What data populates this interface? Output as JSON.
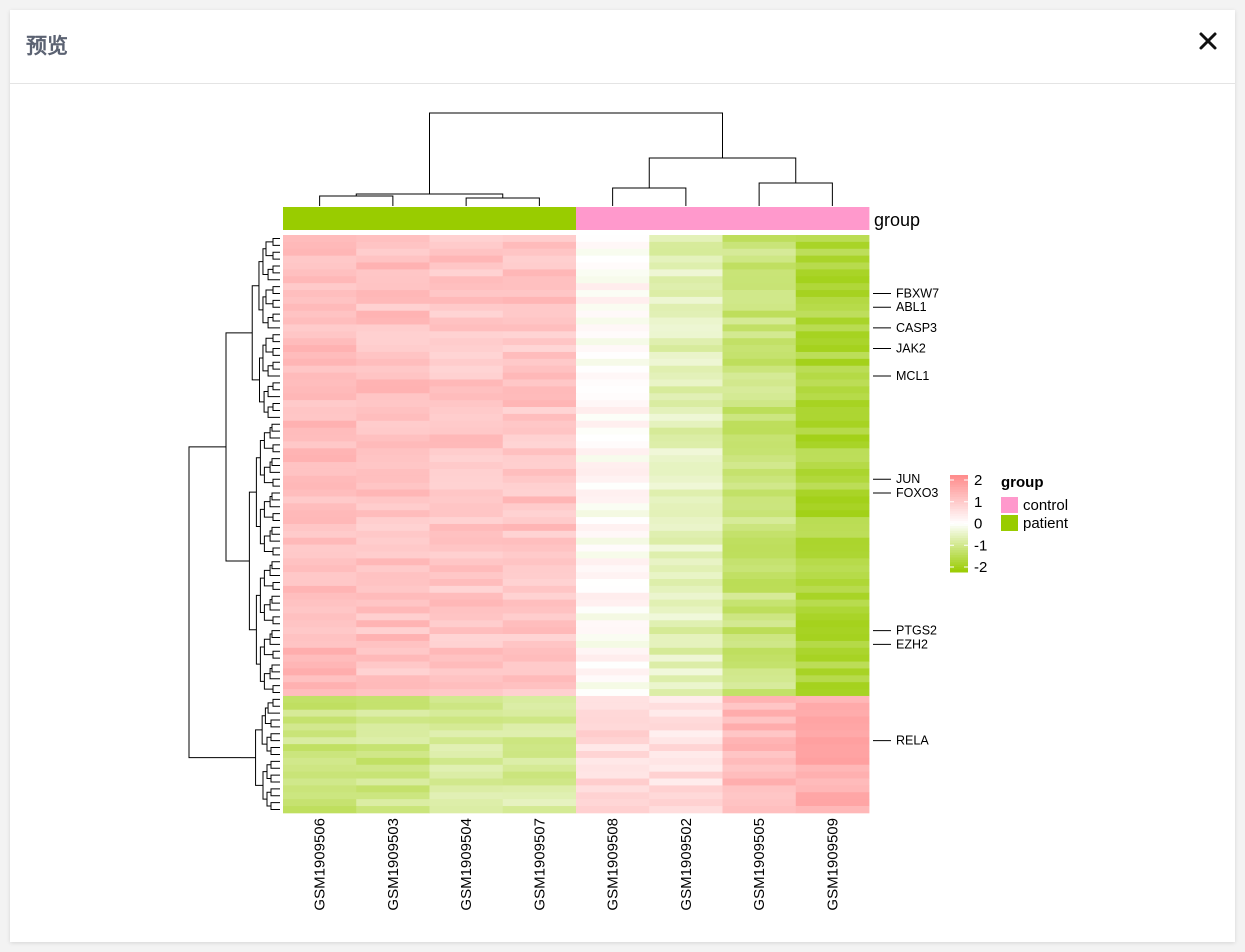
{
  "modal": {
    "title": "预览",
    "close_icon": "close-icon"
  },
  "chart_data": {
    "type": "heatmap",
    "title": "",
    "xlabel": "",
    "ylabel": "",
    "samples": [
      "GSM1909506",
      "GSM1909503",
      "GSM1909504",
      "GSM1909507",
      "GSM1909508",
      "GSM1909502",
      "GSM1909505",
      "GSM1909509"
    ],
    "annotation": {
      "label": "group",
      "values": [
        "patient",
        "patient",
        "patient",
        "patient",
        "control",
        "control",
        "control",
        "control"
      ],
      "colors": {
        "control": "#ff99cc",
        "patient": "#99cc00"
      }
    },
    "legend_group": {
      "title": "group",
      "entries": [
        {
          "name": "control",
          "color": "#ff99cc"
        },
        {
          "name": "patient",
          "color": "#99cc00"
        }
      ]
    },
    "color_scale": {
      "min": -2,
      "max": 2,
      "ticks": [
        "2",
        "1",
        "0",
        "-1",
        "-2"
      ],
      "low_color": "#99cc00",
      "mid_color": "#ffffff",
      "high_color": "#ff8a8a"
    },
    "gene_labels": [
      {
        "name": "FBXW7",
        "row": 8
      },
      {
        "name": "ABL1",
        "row": 10
      },
      {
        "name": "CASP3",
        "row": 13
      },
      {
        "name": "JAK2",
        "row": 16
      },
      {
        "name": "MCL1",
        "row": 20
      },
      {
        "name": "JUN",
        "row": 35
      },
      {
        "name": "FOXO3",
        "row": 37
      },
      {
        "name": "PTGS2",
        "row": 57
      },
      {
        "name": "EZH2",
        "row": 59
      },
      {
        "name": "RELA",
        "row": 73
      }
    ],
    "row_count": 84,
    "cluster_split_row": 67,
    "block_means": {
      "upper_cluster": [
        1.15,
        1.05,
        1.0,
        1.0,
        0.05,
        -0.55,
        -1.05,
        -1.55
      ],
      "lower_cluster": [
        -1.0,
        -0.95,
        -0.75,
        -0.75,
        0.6,
        0.55,
        1.2,
        1.4
      ]
    }
  }
}
